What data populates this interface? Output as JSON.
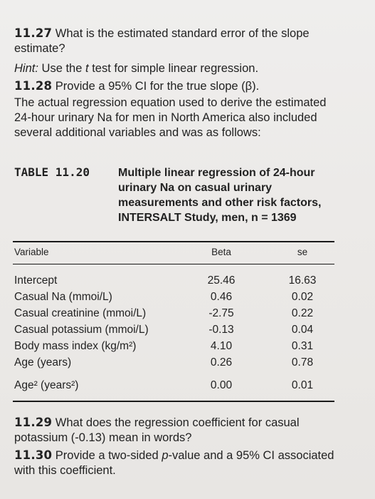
{
  "q1127": {
    "num": "11.27",
    "text": "What is the estimated standard error of the slope estimate?",
    "hint_label": "Hint:",
    "hint_text": "Use the",
    "hint_t": "t",
    "hint_rest": "test for simple linear regression."
  },
  "q1128": {
    "num": "11.28",
    "text": "Provide a 95% CI for the true slope (β).",
    "para": "The actual regression equation used to derive the estimated 24-hour urinary Na for men in North America also included several additional variables and was as follows:"
  },
  "table": {
    "label": "TABLE 11.20",
    "title": "Multiple linear regression of 24-hour urinary Na on casual urinary measurements and other risk factors, INTERSALT Study, men, n = 1369",
    "col_variable": "Variable",
    "col_beta": "Beta",
    "col_se": "se",
    "rows": [
      {
        "variable": "Intercept",
        "beta": "25.46",
        "se": "16.63"
      },
      {
        "variable": "Casual Na (mmoi/L)",
        "beta": "0.46",
        "se": "0.02"
      },
      {
        "variable": "Casual creatinine (mmoi/L)",
        "beta": "-2.75",
        "se": "0.22"
      },
      {
        "variable": "Casual potassium (mmoi/L)",
        "beta": "-0.13",
        "se": "0.04"
      },
      {
        "variable": "Body mass index (kg/m²)",
        "beta": "4.10",
        "se": "0.31"
      },
      {
        "variable": "Age (years)",
        "beta": "0.26",
        "se": "0.78"
      },
      {
        "variable": "Age² (years²)",
        "beta": "0.00",
        "se": "0.01"
      }
    ]
  },
  "q1129": {
    "num": "11.29",
    "text": "What does the regression coefficient for casual potassium (-0.13) mean in words?"
  },
  "q1130": {
    "num": "11.30",
    "text_a": "Provide a two-sided",
    "text_p": "p",
    "text_b": "-value and a 95% CI associated with this coefficient."
  }
}
